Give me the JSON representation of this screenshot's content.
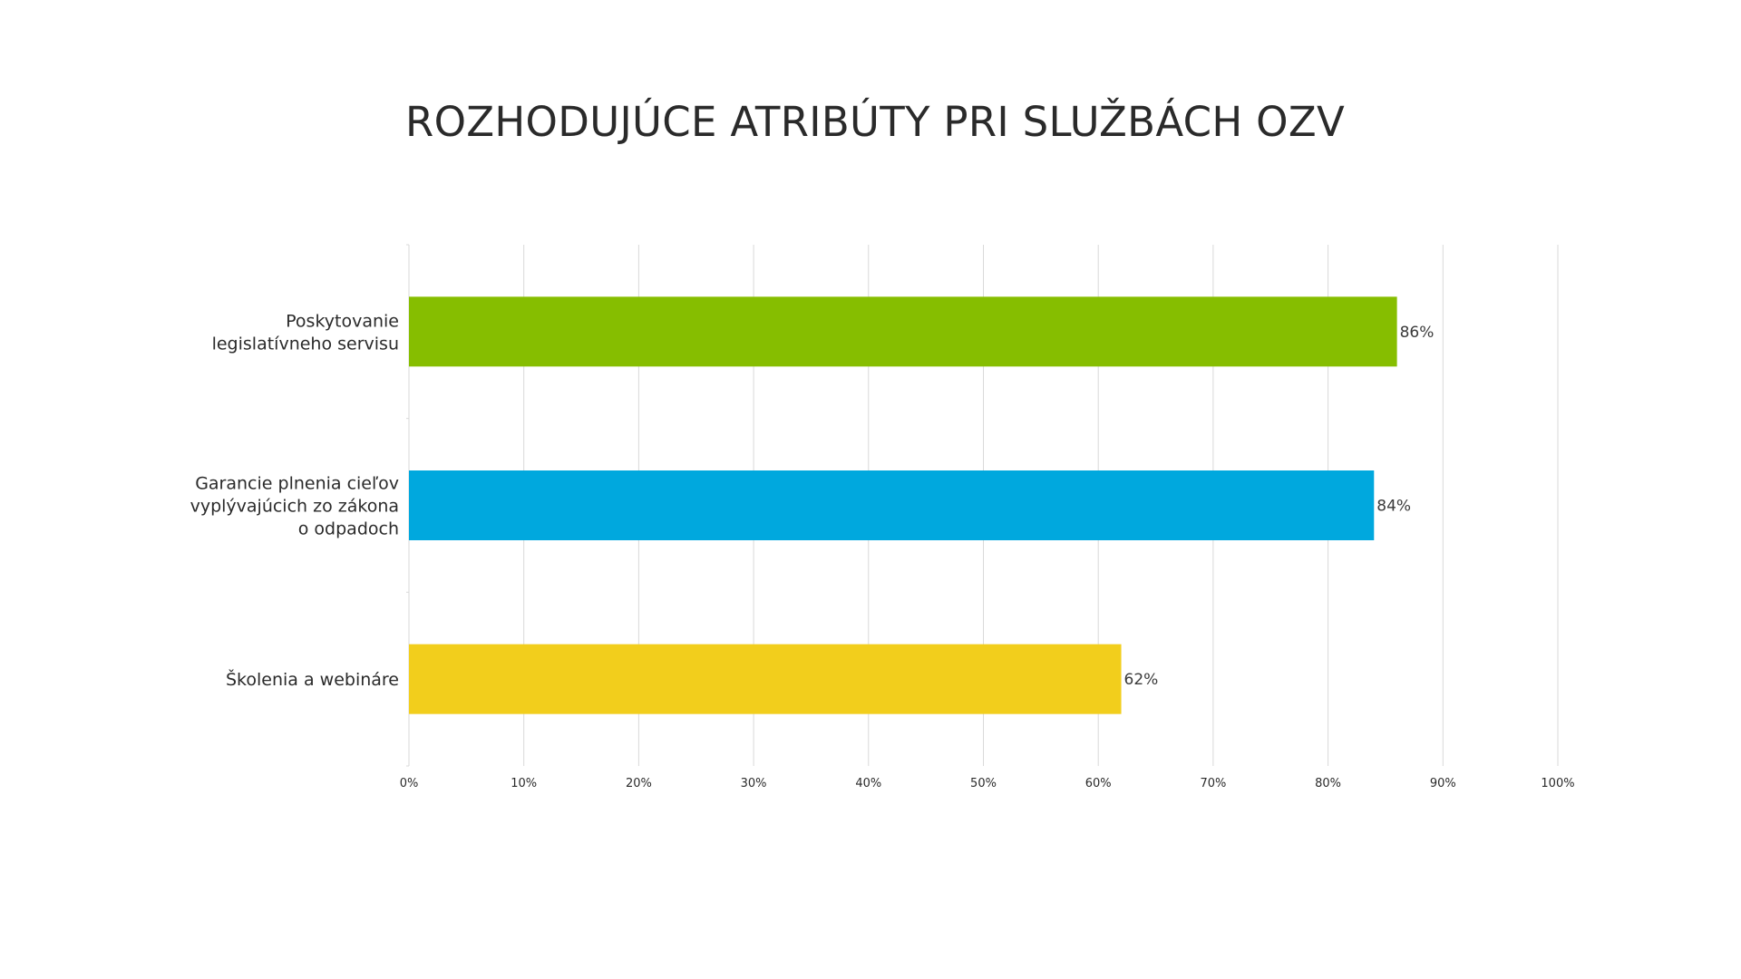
{
  "chart_data": {
    "type": "bar",
    "orientation": "horizontal",
    "title": "ROZHODUJÚCE ATRIBÚTY PRI SLUŽBÁCH OZV",
    "categories": [
      [
        "Poskytovanie",
        "legislatívneho servisu"
      ],
      [
        "Garancie plnenia cieľov",
        "vyplývajúcich zo zákona",
        "o odpadoch"
      ],
      [
        "Školenia a webináre"
      ]
    ],
    "values": [
      86,
      84,
      62
    ],
    "value_labels": [
      "86%",
      "84%",
      "62%"
    ],
    "colors": [
      "#86BE00",
      "#00A8DE",
      "#F2CE1C"
    ],
    "xlim": [
      0,
      100
    ],
    "xticks": [
      "0%",
      "10%",
      "20%",
      "30%",
      "40%",
      "50%",
      "60%",
      "70%",
      "80%",
      "90%",
      "100%"
    ],
    "grid": true,
    "legend": "none",
    "grid_color": "#d9d9d9"
  }
}
